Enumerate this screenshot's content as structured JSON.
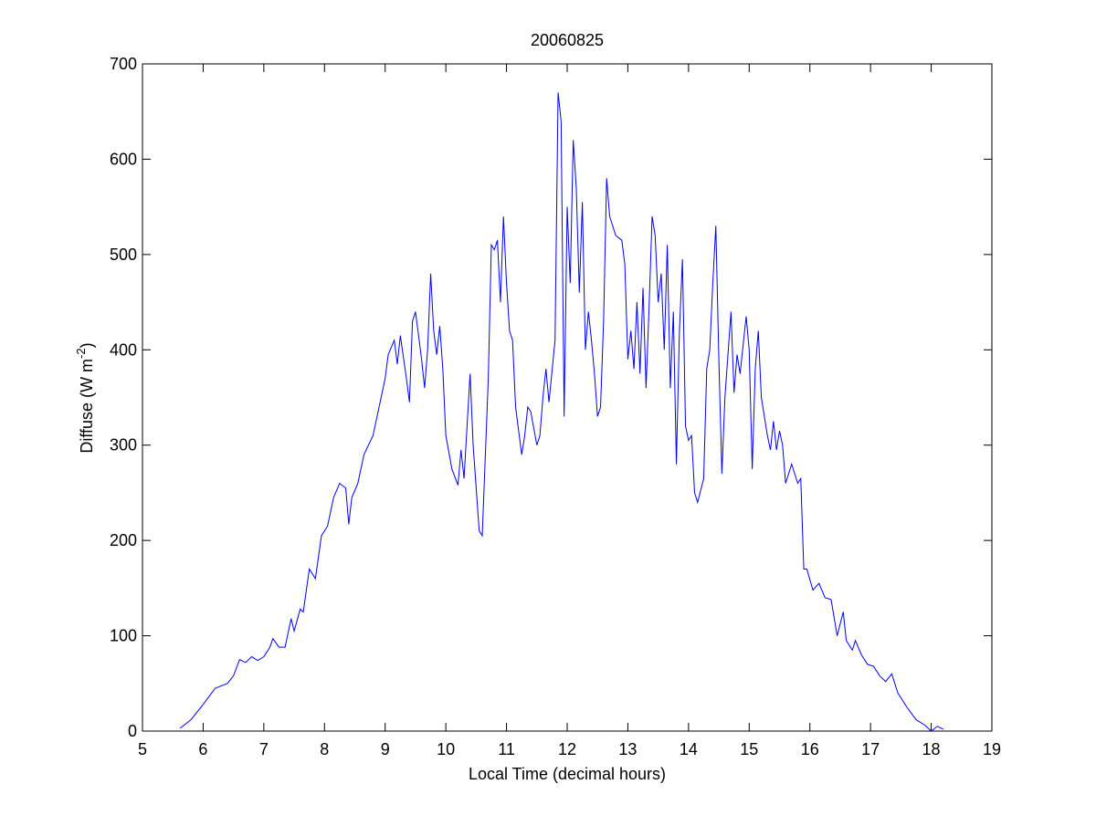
{
  "chart_data": {
    "type": "line",
    "title": "20060825",
    "xlabel": "Local Time (decimal hours)",
    "ylabel": {
      "text": "Diffuse (W m",
      "superscript": "-2",
      "suffix": ")"
    },
    "color": "#0000ff",
    "xlim": [
      5,
      19
    ],
    "ylim": [
      0,
      700
    ],
    "xticks": [
      5,
      6,
      7,
      8,
      9,
      10,
      11,
      12,
      13,
      14,
      15,
      16,
      17,
      18,
      19
    ],
    "yticks": [
      0,
      100,
      200,
      300,
      400,
      500,
      600,
      700
    ],
    "x": [
      5.62,
      5.8,
      6.0,
      6.2,
      6.4,
      6.5,
      6.6,
      6.7,
      6.8,
      6.9,
      7.0,
      7.1,
      7.15,
      7.25,
      7.35,
      7.45,
      7.5,
      7.6,
      7.65,
      7.75,
      7.85,
      7.95,
      8.05,
      8.15,
      8.25,
      8.35,
      8.4,
      8.45,
      8.55,
      8.65,
      8.8,
      8.9,
      9.0,
      9.05,
      9.15,
      9.2,
      9.25,
      9.35,
      9.4,
      9.45,
      9.5,
      9.55,
      9.6,
      9.65,
      9.7,
      9.75,
      9.8,
      9.85,
      9.9,
      9.95,
      10.0,
      10.1,
      10.2,
      10.25,
      10.3,
      10.4,
      10.45,
      10.55,
      10.6,
      10.7,
      10.75,
      10.8,
      10.85,
      10.9,
      10.95,
      11.0,
      11.05,
      11.1,
      11.15,
      11.25,
      11.3,
      11.35,
      11.4,
      11.5,
      11.55,
      11.6,
      11.65,
      11.7,
      11.8,
      11.85,
      11.9,
      11.95,
      12.0,
      12.05,
      12.1,
      12.15,
      12.2,
      12.25,
      12.3,
      12.35,
      12.4,
      12.45,
      12.5,
      12.55,
      12.6,
      12.65,
      12.7,
      12.8,
      12.9,
      12.95,
      13.0,
      13.05,
      13.1,
      13.15,
      13.2,
      13.25,
      13.3,
      13.35,
      13.4,
      13.45,
      13.5,
      13.55,
      13.6,
      13.65,
      13.7,
      13.75,
      13.8,
      13.85,
      13.9,
      13.95,
      14.0,
      14.05,
      14.1,
      14.15,
      14.25,
      14.3,
      14.35,
      14.4,
      14.45,
      14.5,
      14.55,
      14.6,
      14.7,
      14.75,
      14.8,
      14.85,
      14.95,
      15.0,
      15.05,
      15.1,
      15.15,
      15.2,
      15.3,
      15.35,
      15.4,
      15.45,
      15.5,
      15.55,
      15.6,
      15.7,
      15.8,
      15.85,
      15.9,
      15.95,
      16.05,
      16.15,
      16.25,
      16.35,
      16.45,
      16.55,
      16.6,
      16.7,
      16.75,
      16.85,
      16.95,
      17.05,
      17.15,
      17.25,
      17.35,
      17.45,
      17.6,
      17.75,
      17.9,
      18.0,
      18.1,
      18.2
    ],
    "values": [
      3,
      12,
      28,
      45,
      50,
      58,
      75,
      72,
      78,
      74,
      78,
      88,
      97,
      88,
      88,
      118,
      105,
      128,
      125,
      170,
      160,
      205,
      215,
      245,
      260,
      255,
      217,
      245,
      260,
      290,
      310,
      340,
      370,
      395,
      410,
      385,
      415,
      370,
      345,
      430,
      440,
      415,
      390,
      360,
      400,
      480,
      420,
      395,
      425,
      380,
      310,
      275,
      258,
      295,
      265,
      375,
      300,
      210,
      205,
      370,
      510,
      505,
      515,
      450,
      540,
      470,
      420,
      410,
      340,
      290,
      310,
      340,
      335,
      300,
      310,
      350,
      380,
      345,
      410,
      670,
      640,
      330,
      550,
      470,
      620,
      570,
      460,
      555,
      400,
      440,
      410,
      375,
      330,
      340,
      430,
      580,
      540,
      520,
      515,
      490,
      390,
      420,
      380,
      450,
      375,
      465,
      360,
      445,
      540,
      520,
      450,
      480,
      400,
      510,
      360,
      440,
      280,
      420,
      495,
      320,
      305,
      310,
      250,
      240,
      265,
      380,
      400,
      470,
      530,
      390,
      270,
      350,
      440,
      355,
      395,
      375,
      435,
      400,
      275,
      380,
      420,
      350,
      310,
      295,
      325,
      295,
      315,
      300,
      260,
      280,
      260,
      265,
      170,
      170,
      148,
      155,
      140,
      138,
      100,
      125,
      95,
      85,
      95,
      80,
      70,
      68,
      58,
      52,
      60,
      40,
      25,
      12,
      6,
      0,
      5,
      2
    ]
  }
}
